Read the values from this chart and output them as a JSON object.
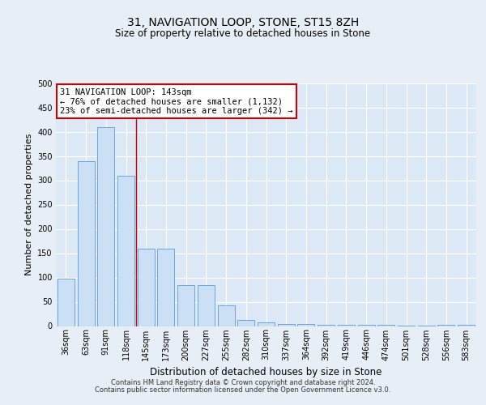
{
  "title": "31, NAVIGATION LOOP, STONE, ST15 8ZH",
  "subtitle": "Size of property relative to detached houses in Stone",
  "xlabel": "Distribution of detached houses by size in Stone",
  "ylabel": "Number of detached properties",
  "categories": [
    "36sqm",
    "63sqm",
    "91sqm",
    "118sqm",
    "145sqm",
    "173sqm",
    "200sqm",
    "227sqm",
    "255sqm",
    "282sqm",
    "310sqm",
    "337sqm",
    "364sqm",
    "392sqm",
    "419sqm",
    "446sqm",
    "474sqm",
    "501sqm",
    "528sqm",
    "556sqm",
    "583sqm"
  ],
  "values": [
    97,
    340,
    410,
    310,
    160,
    160,
    85,
    85,
    43,
    13,
    7,
    5,
    5,
    3,
    2,
    2,
    2,
    1,
    1,
    3,
    3
  ],
  "bar_color": "#cce0f5",
  "bar_edge_color": "#5b9bd5",
  "red_line_x": 3.5,
  "annotation_text": "31 NAVIGATION LOOP: 143sqm\n← 76% of detached houses are smaller (1,132)\n23% of semi-detached houses are larger (342) →",
  "annotation_box_facecolor": "#ffffff",
  "annotation_box_edgecolor": "#cc0000",
  "ylim": [
    0,
    500
  ],
  "yticks": [
    0,
    50,
    100,
    150,
    200,
    250,
    300,
    350,
    400,
    450,
    500
  ],
  "footer_line1": "Contains HM Land Registry data © Crown copyright and database right 2024.",
  "footer_line2": "Contains public sector information licensed under the Open Government Licence v3.0.",
  "fig_facecolor": "#e8eef5",
  "plot_facecolor": "#dce8f5",
  "grid_color": "#ffffff",
  "title_fontsize": 10,
  "subtitle_fontsize": 8.5,
  "ylabel_fontsize": 8,
  "xlabel_fontsize": 8.5,
  "tick_fontsize": 7,
  "annot_fontsize": 7.5
}
